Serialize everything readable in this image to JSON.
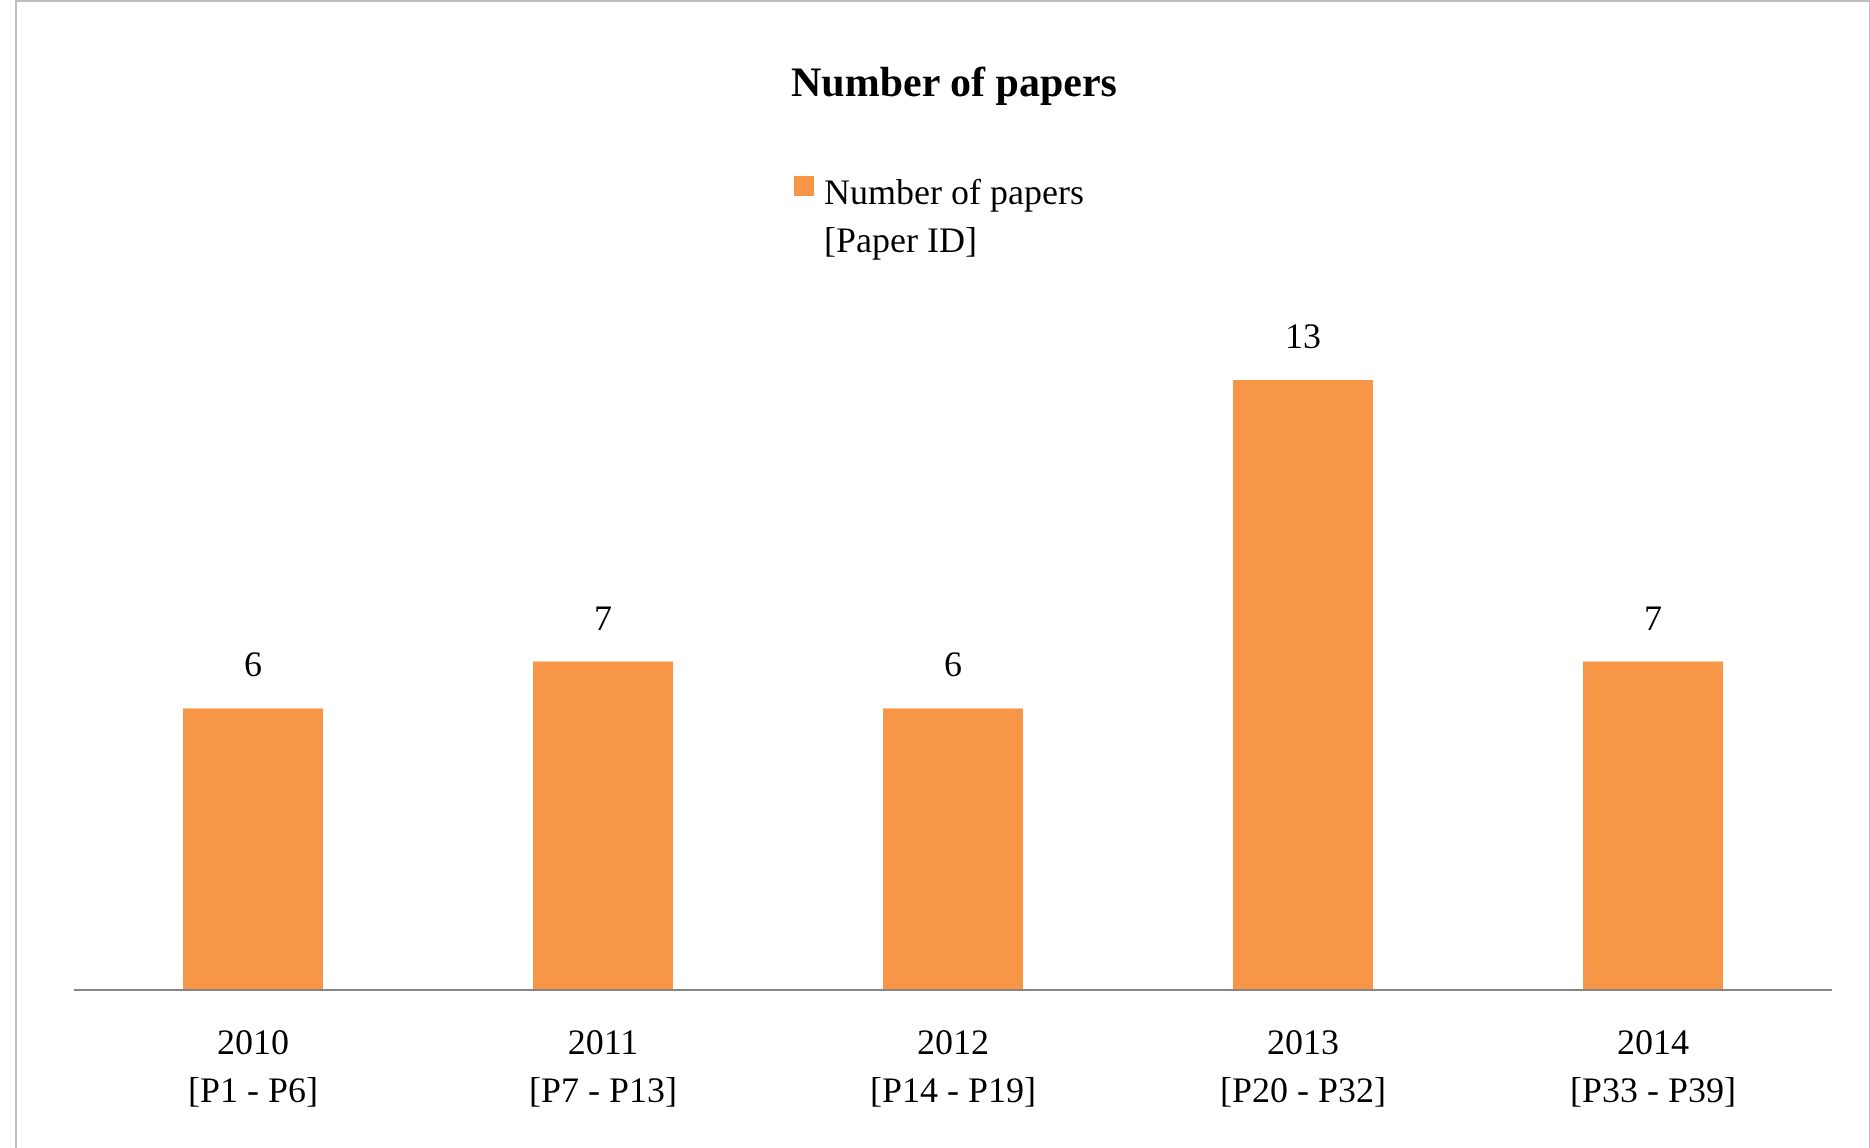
{
  "chart_data": {
    "type": "bar",
    "title": "Number of papers",
    "categories": [
      "2010\n[P1 - P6]",
      "2011\n[P7 - P13]",
      "2012\n[P14 - P19]",
      "2013\n[P20 - P32]",
      "2014\n[P33 - P39]"
    ],
    "series": [
      {
        "name": "Number of papers\n[Paper ID]",
        "color": "#f79646",
        "values": [
          6,
          7,
          6,
          13,
          7
        ]
      }
    ],
    "data_labels": true,
    "legend": "top"
  }
}
